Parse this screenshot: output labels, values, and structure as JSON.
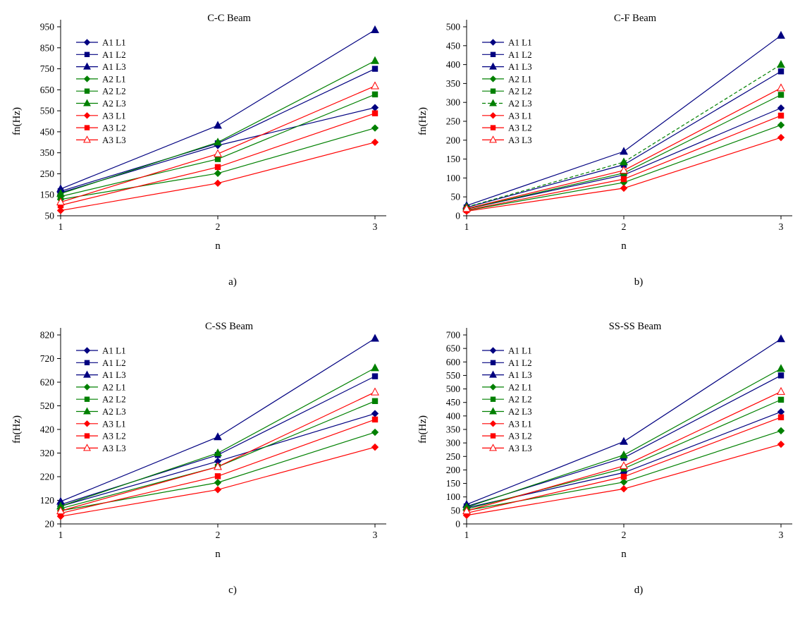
{
  "figure": {
    "background": "#ffffff",
    "text_color": "#000000"
  },
  "chart_data": [
    {
      "id": "a",
      "type": "line",
      "title": "C-C Beam",
      "sublabel": "a)",
      "xlabel": "n",
      "ylabel": "fn(Hz)",
      "x": [
        1,
        2,
        3
      ],
      "ymin": 50,
      "ymax": 950,
      "ystep": 100,
      "grid": false,
      "legend_position": "top-left-inside",
      "series": [
        {
          "name": "A1 L1",
          "color": "#000080",
          "marker": "diamond",
          "marker_fill": "filled",
          "line": "solid",
          "values": [
            160,
            385,
            565
          ]
        },
        {
          "name": "A1 L2",
          "color": "#000080",
          "marker": "square",
          "marker_fill": "filled",
          "line": "solid",
          "values": [
            167,
            395,
            750
          ]
        },
        {
          "name": "A1 L3",
          "color": "#000080",
          "marker": "triangle",
          "marker_fill": "filled",
          "line": "solid",
          "values": [
            178,
            480,
            935
          ]
        },
        {
          "name": "A2 L1",
          "color": "#008000",
          "marker": "diamond",
          "marker_fill": "filled",
          "line": "solid",
          "values": [
            128,
            252,
            468
          ]
        },
        {
          "name": "A2 L2",
          "color": "#008000",
          "marker": "square",
          "marker_fill": "filled",
          "line": "solid",
          "values": [
            142,
            320,
            628
          ]
        },
        {
          "name": "A2 L3",
          "color": "#008000",
          "marker": "triangle",
          "marker_fill": "filled",
          "line": "solid",
          "values": [
            155,
            400,
            788
          ]
        },
        {
          "name": "A3 L1",
          "color": "#FF0000",
          "marker": "diamond",
          "marker_fill": "filled",
          "line": "solid",
          "values": [
            75,
            205,
            400
          ]
        },
        {
          "name": "A3 L2",
          "color": "#FF0000",
          "marker": "square",
          "marker_fill": "filled",
          "line": "solid",
          "values": [
            100,
            282,
            538
          ]
        },
        {
          "name": "A3 L3",
          "color": "#FF0000",
          "marker": "triangle",
          "marker_fill": "open",
          "line": "solid",
          "values": [
            115,
            345,
            668
          ]
        }
      ]
    },
    {
      "id": "b",
      "type": "line",
      "title": "C-F Beam",
      "sublabel": "b)",
      "xlabel": "n",
      "ylabel": "fn(Hz)",
      "x": [
        1,
        2,
        3
      ],
      "ymin": 0,
      "ymax": 500,
      "ystep": 50,
      "grid": false,
      "legend_position": "top-left-inside",
      "series": [
        {
          "name": "A1 L1",
          "color": "#000080",
          "marker": "diamond",
          "marker_fill": "filled",
          "line": "solid",
          "values": [
            18,
            108,
            285
          ]
        },
        {
          "name": "A1 L2",
          "color": "#000080",
          "marker": "square",
          "marker_fill": "filled",
          "line": "solid",
          "values": [
            22,
            135,
            382
          ]
        },
        {
          "name": "A1 L3",
          "color": "#000080",
          "marker": "triangle",
          "marker_fill": "filled",
          "line": "solid",
          "values": [
            27,
            170,
            477
          ]
        },
        {
          "name": "A2 L1",
          "color": "#008000",
          "marker": "diamond",
          "marker_fill": "filled",
          "line": "solid",
          "values": [
            14,
            88,
            240
          ]
        },
        {
          "name": "A2 L2",
          "color": "#008000",
          "marker": "square",
          "marker_fill": "filled",
          "line": "solid",
          "values": [
            18,
            113,
            320
          ]
        },
        {
          "name": "A2 L3",
          "color": "#008000",
          "marker": "triangle",
          "marker_fill": "filled",
          "line": "dashed",
          "values": [
            23,
            142,
            400
          ]
        },
        {
          "name": "A3 L1",
          "color": "#FF0000",
          "marker": "diamond",
          "marker_fill": "filled",
          "line": "solid",
          "values": [
            12,
            73,
            207
          ]
        },
        {
          "name": "A3 L2",
          "color": "#FF0000",
          "marker": "square",
          "marker_fill": "filled",
          "line": "solid",
          "values": [
            15,
            97,
            265
          ]
        },
        {
          "name": "A3 L3",
          "color": "#FF0000",
          "marker": "triangle",
          "marker_fill": "open",
          "line": "solid",
          "values": [
            19,
            120,
            338
          ]
        }
      ]
    },
    {
      "id": "c",
      "type": "line",
      "title": "C-SS Beam",
      "sublabel": "c)",
      "xlabel": "n",
      "ylabel": "fn(Hz)",
      "x": [
        1,
        2,
        3
      ],
      "ymin": 20,
      "ymax": 820,
      "ystep": 100,
      "grid": false,
      "legend_position": "top-left-inside",
      "series": [
        {
          "name": "A1 L1",
          "color": "#000080",
          "marker": "diamond",
          "marker_fill": "filled",
          "line": "solid",
          "values": [
            95,
            285,
            487
          ]
        },
        {
          "name": "A1 L2",
          "color": "#000080",
          "marker": "square",
          "marker_fill": "filled",
          "line": "solid",
          "values": [
            102,
            312,
            645
          ]
        },
        {
          "name": "A1 L3",
          "color": "#000080",
          "marker": "triangle",
          "marker_fill": "filled",
          "line": "solid",
          "values": [
            115,
            388,
            805
          ]
        },
        {
          "name": "A2 L1",
          "color": "#008000",
          "marker": "diamond",
          "marker_fill": "filled",
          "line": "solid",
          "values": [
            76,
            195,
            408
          ]
        },
        {
          "name": "A2 L2",
          "color": "#008000",
          "marker": "square",
          "marker_fill": "filled",
          "line": "solid",
          "values": [
            85,
            262,
            540
          ]
        },
        {
          "name": "A2 L3",
          "color": "#008000",
          "marker": "triangle",
          "marker_fill": "filled",
          "line": "solid",
          "values": [
            95,
            320,
            680
          ]
        },
        {
          "name": "A3 L1",
          "color": "#FF0000",
          "marker": "diamond",
          "marker_fill": "filled",
          "line": "solid",
          "values": [
            52,
            165,
            345
          ]
        },
        {
          "name": "A3 L2",
          "color": "#FF0000",
          "marker": "square",
          "marker_fill": "filled",
          "line": "solid",
          "values": [
            65,
            222,
            462
          ]
        },
        {
          "name": "A3 L3",
          "color": "#FF0000",
          "marker": "triangle",
          "marker_fill": "open",
          "line": "solid",
          "values": [
            75,
            262,
            578
          ]
        }
      ]
    },
    {
      "id": "d",
      "type": "line",
      "title": "SS-SS Beam",
      "sublabel": "d)",
      "xlabel": "n",
      "ylabel": "fn(Hz)",
      "x": [
        1,
        2,
        3
      ],
      "ymin": 0,
      "ymax": 700,
      "ystep": 50,
      "grid": false,
      "legend_position": "top-left-inside",
      "series": [
        {
          "name": "A1 L1",
          "color": "#000080",
          "marker": "diamond",
          "marker_fill": "filled",
          "line": "solid",
          "values": [
            60,
            190,
            415
          ]
        },
        {
          "name": "A1 L2",
          "color": "#000080",
          "marker": "square",
          "marker_fill": "filled",
          "line": "solid",
          "values": [
            65,
            245,
            550
          ]
        },
        {
          "name": "A1 L3",
          "color": "#000080",
          "marker": "triangle",
          "marker_fill": "filled",
          "line": "solid",
          "values": [
            72,
            305,
            685
          ]
        },
        {
          "name": "A2 L1",
          "color": "#008000",
          "marker": "diamond",
          "marker_fill": "filled",
          "line": "solid",
          "values": [
            50,
            155,
            345
          ]
        },
        {
          "name": "A2 L2",
          "color": "#008000",
          "marker": "square",
          "marker_fill": "filled",
          "line": "solid",
          "values": [
            55,
            205,
            460
          ]
        },
        {
          "name": "A2 L3",
          "color": "#008000",
          "marker": "triangle",
          "marker_fill": "filled",
          "line": "solid",
          "values": [
            62,
            255,
            575
          ]
        },
        {
          "name": "A3 L1",
          "color": "#FF0000",
          "marker": "diamond",
          "marker_fill": "filled",
          "line": "solid",
          "values": [
            32,
            130,
            295
          ]
        },
        {
          "name": "A3 L2",
          "color": "#FF0000",
          "marker": "square",
          "marker_fill": "filled",
          "line": "solid",
          "values": [
            40,
            175,
            395
          ]
        },
        {
          "name": "A3 L3",
          "color": "#FF0000",
          "marker": "triangle",
          "marker_fill": "open",
          "line": "solid",
          "values": [
            48,
            215,
            490
          ]
        }
      ]
    }
  ]
}
